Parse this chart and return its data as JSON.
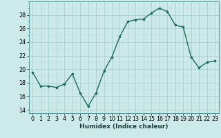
{
  "x": [
    0,
    1,
    2,
    3,
    4,
    5,
    6,
    7,
    8,
    9,
    10,
    11,
    12,
    13,
    14,
    15,
    16,
    17,
    18,
    19,
    20,
    21,
    22,
    23
  ],
  "y": [
    19.5,
    17.5,
    17.5,
    17.3,
    17.8,
    19.3,
    16.5,
    14.5,
    16.5,
    19.7,
    21.8,
    24.8,
    27.0,
    27.3,
    27.4,
    28.3,
    29.0,
    28.5,
    26.5,
    26.2,
    21.8,
    20.2,
    21.0,
    21.2
  ],
  "line_color": "#1a6b5a",
  "marker": "D",
  "marker_size": 1.8,
  "bg_color": "#cdeaea",
  "grid_major_color": "#aacece",
  "grid_minor_color": "#bcdcdc",
  "xlabel": "Humidex (Indice chaleur)",
  "xlim": [
    -0.5,
    23.5
  ],
  "ylim": [
    13.5,
    30.0
  ],
  "yticks": [
    14,
    16,
    18,
    20,
    22,
    24,
    26,
    28
  ],
  "xticks": [
    0,
    1,
    2,
    3,
    4,
    5,
    6,
    7,
    8,
    9,
    10,
    11,
    12,
    13,
    14,
    15,
    16,
    17,
    18,
    19,
    20,
    21,
    22,
    23
  ],
  "xlabel_fontsize": 6.5,
  "tick_fontsize": 5.8
}
